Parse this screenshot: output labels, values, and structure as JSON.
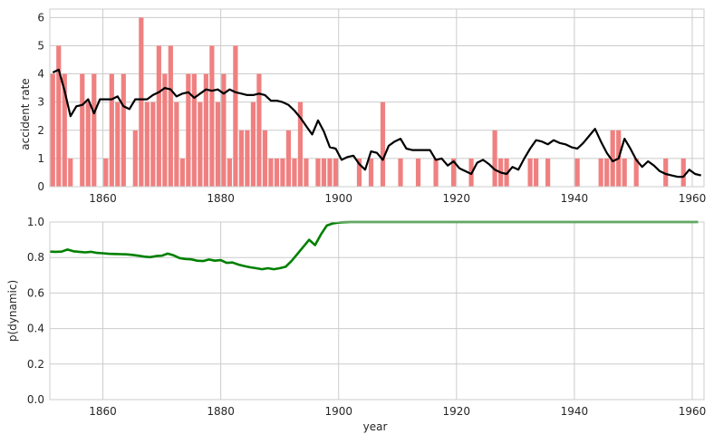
{
  "colors": {
    "bars": "#f08080",
    "rate_line": "#000000",
    "prob_line": "#008000",
    "grid": "#cccccc",
    "frame": "#cccccc"
  },
  "chart_data": [
    {
      "type": "bar",
      "title": "",
      "ylabel": "accident rate",
      "xlabel": "",
      "xlim": [
        1851,
        1962
      ],
      "ylim": [
        0,
        6.3
      ],
      "x_ticks": [
        "1860",
        "1880",
        "1900",
        "1920",
        "1940",
        "1960"
      ],
      "y_ticks": [
        "0",
        "1",
        "2",
        "3",
        "4",
        "5",
        "6"
      ],
      "grid": true,
      "bars": {
        "x": [
          1851,
          1852,
          1853,
          1854,
          1855,
          1856,
          1857,
          1858,
          1859,
          1860,
          1861,
          1862,
          1863,
          1864,
          1865,
          1866,
          1867,
          1868,
          1869,
          1870,
          1871,
          1872,
          1873,
          1874,
          1875,
          1876,
          1877,
          1878,
          1879,
          1880,
          1881,
          1882,
          1883,
          1884,
          1885,
          1886,
          1887,
          1888,
          1889,
          1890,
          1891,
          1892,
          1893,
          1894,
          1895,
          1896,
          1897,
          1898,
          1899,
          1900,
          1901,
          1902,
          1903,
          1904,
          1905,
          1906,
          1907,
          1908,
          1909,
          1910,
          1911,
          1912,
          1913,
          1914,
          1915,
          1916,
          1917,
          1918,
          1919,
          1920,
          1921,
          1922,
          1923,
          1924,
          1925,
          1926,
          1927,
          1928,
          1929,
          1930,
          1931,
          1932,
          1933,
          1934,
          1935,
          1936,
          1937,
          1938,
          1939,
          1940,
          1941,
          1942,
          1943,
          1944,
          1945,
          1946,
          1947,
          1948,
          1949,
          1950,
          1951,
          1952,
          1953,
          1954,
          1955,
          1956,
          1957,
          1958,
          1959,
          1960,
          1961
        ],
        "values": [
          4,
          5,
          4,
          1,
          0,
          4,
          3,
          4,
          0,
          1,
          4,
          3,
          4,
          0,
          2,
          6,
          3,
          3,
          5,
          4,
          5,
          3,
          1,
          4,
          4,
          3,
          4,
          5,
          3,
          4,
          1,
          5,
          2,
          2,
          3,
          4,
          2,
          1,
          1,
          1,
          2,
          1,
          3,
          1,
          0,
          1,
          1,
          1,
          1,
          0,
          0,
          0,
          1,
          0,
          1,
          0,
          3,
          0,
          0,
          1,
          0,
          0,
          1,
          0,
          0,
          1,
          0,
          0,
          1,
          0,
          0,
          1,
          0,
          0,
          0,
          2,
          1,
          1,
          0,
          0,
          0,
          1,
          1,
          0,
          1,
          0,
          0,
          0,
          0,
          1,
          0,
          0,
          0,
          1,
          1,
          2,
          2,
          1,
          0,
          1,
          0,
          0,
          0,
          0,
          1,
          0,
          0,
          1,
          0,
          0,
          0
        ]
      },
      "smoothed_line": {
        "name": "",
        "x": [
          1851,
          1852,
          1853,
          1854,
          1855,
          1856,
          1857,
          1858,
          1859,
          1860,
          1861,
          1862,
          1863,
          1864,
          1865,
          1866,
          1867,
          1868,
          1869,
          1870,
          1871,
          1872,
          1873,
          1874,
          1875,
          1876,
          1877,
          1878,
          1879,
          1880,
          1881,
          1882,
          1883,
          1884,
          1885,
          1886,
          1887,
          1888,
          1889,
          1890,
          1891,
          1892,
          1893,
          1894,
          1895,
          1896,
          1897,
          1898,
          1899,
          1900,
          1901,
          1902,
          1903,
          1904,
          1905,
          1906,
          1907,
          1908,
          1909,
          1910,
          1911,
          1912,
          1913,
          1914,
          1915,
          1916,
          1917,
          1918,
          1919,
          1920,
          1921,
          1922,
          1923,
          1924,
          1925,
          1926,
          1927,
          1928,
          1929,
          1930,
          1931,
          1932,
          1933,
          1934,
          1935,
          1936,
          1937,
          1938,
          1939,
          1940,
          1941,
          1942,
          1943,
          1944,
          1945,
          1946,
          1947,
          1948,
          1949,
          1950,
          1951,
          1952,
          1953,
          1954,
          1955,
          1956,
          1957,
          1958,
          1959,
          1960,
          1961
        ],
        "values": [
          4.05,
          4.15,
          3.4,
          2.5,
          2.85,
          2.9,
          3.1,
          2.6,
          3.1,
          3.1,
          3.1,
          3.2,
          2.85,
          2.75,
          3.1,
          3.1,
          3.1,
          3.25,
          3.35,
          3.5,
          3.45,
          3.2,
          3.3,
          3.35,
          3.15,
          3.3,
          3.45,
          3.4,
          3.45,
          3.3,
          3.45,
          3.35,
          3.3,
          3.25,
          3.25,
          3.3,
          3.25,
          3.05,
          3.05,
          3.0,
          2.9,
          2.7,
          2.45,
          2.15,
          1.85,
          2.35,
          1.95,
          1.4,
          1.35,
          0.95,
          1.05,
          1.1,
          0.8,
          0.6,
          1.25,
          1.2,
          0.95,
          1.45,
          1.6,
          1.7,
          1.35,
          1.3,
          1.3,
          1.3,
          1.3,
          0.95,
          1.0,
          0.75,
          0.9,
          0.65,
          0.55,
          0.45,
          0.85,
          0.95,
          0.8,
          0.6,
          0.5,
          0.45,
          0.7,
          0.6,
          1.0,
          1.35,
          1.65,
          1.6,
          1.5,
          1.65,
          1.55,
          1.5,
          1.4,
          1.35,
          1.55,
          1.8,
          2.05,
          1.6,
          1.2,
          0.9,
          1.0,
          1.7,
          1.35,
          0.95,
          0.7,
          0.9,
          0.75,
          0.55,
          0.45,
          0.4,
          0.35,
          0.35,
          0.6,
          0.45,
          0.4
        ]
      }
    },
    {
      "type": "line",
      "title": "",
      "ylabel": "p(dynamic)",
      "xlabel": "year",
      "xlim": [
        1851,
        1962
      ],
      "ylim": [
        0.0,
        1.0
      ],
      "x_ticks": [
        "1860",
        "1880",
        "1900",
        "1920",
        "1940",
        "1960"
      ],
      "y_ticks": [
        "0.0",
        "0.2",
        "0.4",
        "0.6",
        "0.8",
        "1.0"
      ],
      "grid": true,
      "series": [
        {
          "name": "",
          "x": [
            1851,
            1852,
            1853,
            1854,
            1855,
            1856,
            1857,
            1858,
            1859,
            1860,
            1861,
            1862,
            1863,
            1864,
            1865,
            1866,
            1867,
            1868,
            1869,
            1870,
            1871,
            1872,
            1873,
            1874,
            1875,
            1876,
            1877,
            1878,
            1879,
            1880,
            1881,
            1882,
            1883,
            1884,
            1885,
            1886,
            1887,
            1888,
            1889,
            1890,
            1891,
            1892,
            1893,
            1894,
            1895,
            1896,
            1897,
            1898,
            1899,
            1900,
            1901,
            1902,
            1903,
            1904,
            1905,
            1906,
            1907,
            1908,
            1909,
            1910,
            1911,
            1912,
            1913,
            1914,
            1915,
            1916,
            1917,
            1918,
            1919,
            1920,
            1921,
            1922,
            1923,
            1924,
            1925,
            1926,
            1927,
            1928,
            1929,
            1930,
            1931,
            1932,
            1933,
            1934,
            1935,
            1936,
            1937,
            1938,
            1939,
            1940,
            1941,
            1942,
            1943,
            1944,
            1945,
            1946,
            1947,
            1948,
            1949,
            1950,
            1951,
            1952,
            1953,
            1954,
            1955,
            1956,
            1957,
            1958,
            1959,
            1960,
            1961
          ],
          "values": [
            0.833,
            0.832,
            0.833,
            0.845,
            0.835,
            0.832,
            0.829,
            0.832,
            0.826,
            0.824,
            0.821,
            0.82,
            0.819,
            0.818,
            0.815,
            0.81,
            0.805,
            0.802,
            0.808,
            0.81,
            0.822,
            0.812,
            0.797,
            0.792,
            0.79,
            0.782,
            0.78,
            0.789,
            0.782,
            0.785,
            0.77,
            0.772,
            0.76,
            0.752,
            0.745,
            0.74,
            0.734,
            0.74,
            0.734,
            0.74,
            0.748,
            0.78,
            0.82,
            0.86,
            0.9,
            0.87,
            0.93,
            0.98,
            0.992,
            0.997,
            0.999,
            1.0,
            1.0,
            1.0,
            1.0,
            1.0,
            1.0,
            1.0,
            1.0,
            1.0,
            1.0,
            1.0,
            1.0,
            1.0,
            1.0,
            1.0,
            1.0,
            1.0,
            1.0,
            1.0,
            1.0,
            1.0,
            1.0,
            1.0,
            1.0,
            1.0,
            1.0,
            1.0,
            1.0,
            1.0,
            1.0,
            1.0,
            1.0,
            1.0,
            1.0,
            1.0,
            1.0,
            1.0,
            1.0,
            1.0,
            1.0,
            1.0,
            1.0,
            1.0,
            1.0,
            1.0,
            1.0,
            1.0,
            1.0,
            1.0,
            1.0,
            1.0,
            1.0,
            1.0,
            1.0,
            1.0,
            1.0,
            1.0,
            1.0,
            1.0,
            1.0
          ]
        }
      ]
    }
  ]
}
